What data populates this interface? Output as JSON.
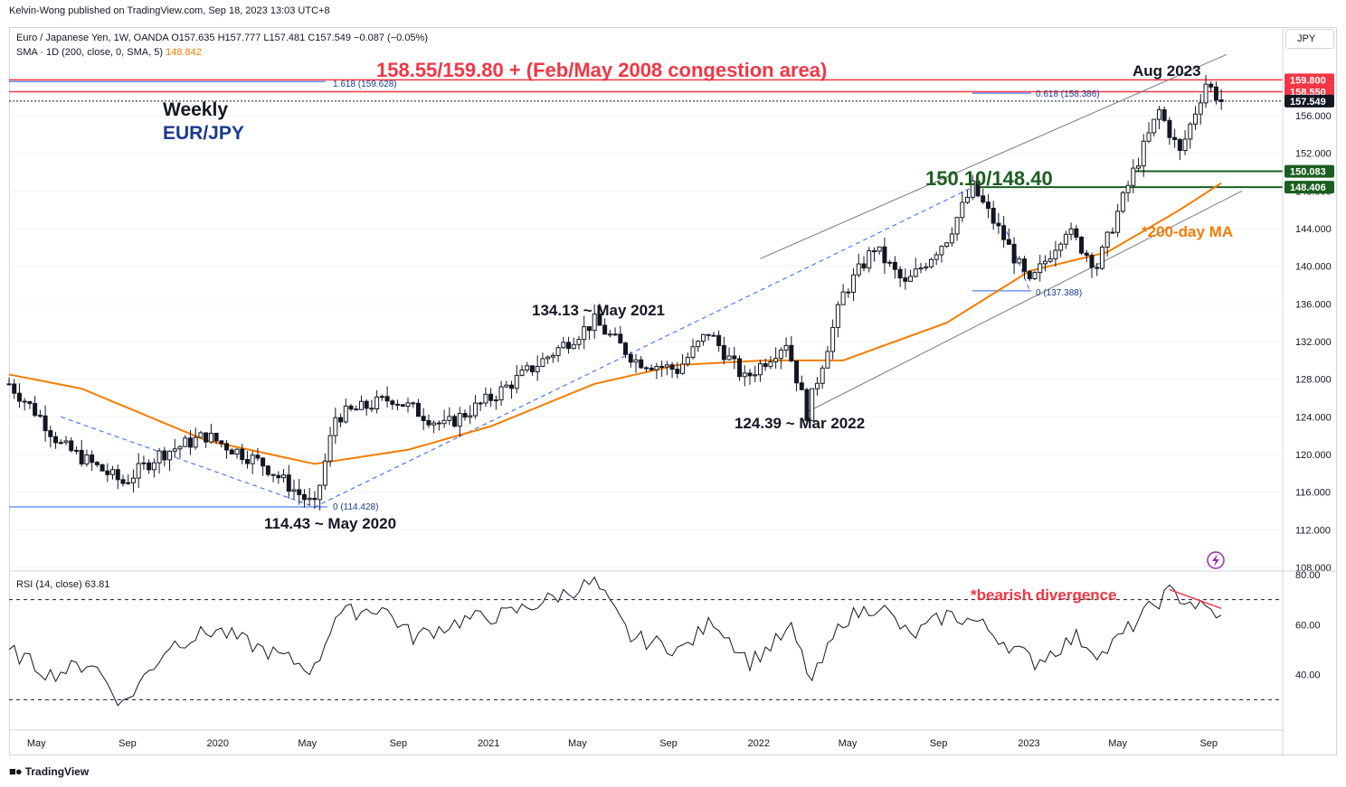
{
  "header": {
    "publisher": "Kelvin-Wong published on TradingView.com, Sep 18, 2023 13:03 UTC+8",
    "symbol_line": "Euro / Japanese Yen, 1W, OANDA  O157.635  H157.777  L157.481  C157.549  −0.087 (−0.05%)",
    "sma_line": "SMA · 1D (200, close, 0, SMA, 5)",
    "sma_value": "148.842",
    "currency": "JPY",
    "rsi_line": "RSI (14, close)  63.81"
  },
  "footer": {
    "logo_text": "TradingView"
  },
  "colors": {
    "up": "#131722",
    "down": "#131722",
    "sma": "#f57c00",
    "resistance": "#f23645",
    "support": "#1b5e20",
    "fib": "#2962ff",
    "annotation_blue": "#1a3a8f",
    "grid": "#e0e3eb"
  },
  "annotations": {
    "resistance_title": "158.55/159.80 + (Feb/May 2008 congestion area)",
    "support_title": "150.10/148.40",
    "weekly": "Weekly",
    "pair": "EUR/JPY",
    "ma_label": "*200-day MA",
    "aug_2023": "Aug 2023",
    "may_2021": "134.13 ~ May 2021",
    "mar_2022": "124.39 ~ Mar 2022",
    "may_2020": "114.43 ~ May 2020",
    "bearish_div": "*bearish divergence",
    "fib_1618": "1.618 (159.628)",
    "fib_0618": "0.618 (158.386)",
    "fib_zero_a": "0 (114.428)",
    "fib_zero_b": "0 (137.388)"
  },
  "chart_data": [
    {
      "type": "candlestick",
      "title": "Euro / Japanese Yen, 1W, OANDA",
      "ylim": [
        108,
        161.5
      ],
      "y_ticks": [
        "108.000",
        "112.000",
        "116.000",
        "120.000",
        "124.000",
        "128.000",
        "132.000",
        "136.000",
        "140.000",
        "144.000",
        "148.000",
        "152.000",
        "156.000"
      ],
      "x_labels": [
        "May",
        "Sep",
        "2020",
        "May",
        "Sep",
        "2021",
        "May",
        "Sep",
        "2022",
        "May",
        "Sep",
        "2023",
        "May",
        "Sep"
      ],
      "price_labels": [
        {
          "label": "159.800",
          "value": 159.8,
          "color": "#f23645"
        },
        {
          "label": "158.550",
          "value": 158.55,
          "color": "#f23645"
        },
        {
          "label": "157.549",
          "value": 157.549,
          "color": "#131722"
        },
        {
          "label": "150.083",
          "value": 150.083,
          "color": "#1b5e20"
        },
        {
          "label": "148.406",
          "value": 148.406,
          "color": "#1b5e20"
        }
      ],
      "horizontal_levels": [
        {
          "name": "resistance-upper",
          "value": 159.8
        },
        {
          "name": "resistance-lower",
          "value": 158.55
        },
        {
          "name": "support-upper",
          "value": 150.1
        },
        {
          "name": "support-lower",
          "value": 148.4
        },
        {
          "name": "current-close",
          "value": 157.549
        }
      ],
      "ohlc_anchors": [
        [
          "2019-03-25",
          127.5
        ],
        [
          "2019-05-06",
          124.0
        ],
        [
          "2019-06-03",
          121.0
        ],
        [
          "2019-08-26",
          117.0
        ],
        [
          "2019-10-14",
          120.0
        ],
        [
          "2019-12-16",
          122.0
        ],
        [
          "2020-03-02",
          119.0
        ],
        [
          "2020-05-11",
          114.43
        ],
        [
          "2020-06-08",
          124.0
        ],
        [
          "2020-08-24",
          126.0
        ],
        [
          "2020-11-02",
          123.0
        ],
        [
          "2021-01-04",
          126.0
        ],
        [
          "2021-03-15",
          130.0
        ],
        [
          "2021-05-24",
          134.13
        ],
        [
          "2021-07-19",
          130.0
        ],
        [
          "2021-09-13",
          129.0
        ],
        [
          "2021-10-25",
          133.0
        ],
        [
          "2021-12-13",
          128.0
        ],
        [
          "2022-02-07",
          132.0
        ],
        [
          "2022-03-07",
          124.39
        ],
        [
          "2022-04-25",
          137.0
        ],
        [
          "2022-06-06",
          142.0
        ],
        [
          "2022-07-18",
          138.0
        ],
        [
          "2022-09-12",
          143.0
        ],
        [
          "2022-10-17",
          148.4
        ],
        [
          "2022-11-28",
          143.0
        ],
        [
          "2023-01-02",
          138.0
        ],
        [
          "2023-02-20",
          144.0
        ],
        [
          "2023-04-03",
          140.0
        ],
        [
          "2023-05-22",
          150.0
        ],
        [
          "2023-06-26",
          156.5
        ],
        [
          "2023-07-24",
          152.0
        ],
        [
          "2023-08-28",
          159.5
        ],
        [
          "2023-09-18",
          157.549
        ]
      ],
      "sma_200d_anchors": [
        [
          "2019-03-25",
          128.5
        ],
        [
          "2019-07-01",
          127.0
        ],
        [
          "2019-12-16",
          121.5
        ],
        [
          "2020-05-11",
          119.0
        ],
        [
          "2020-09-14",
          120.5
        ],
        [
          "2021-01-04",
          123.0
        ],
        [
          "2021-05-24",
          127.5
        ],
        [
          "2021-09-13",
          129.5
        ],
        [
          "2022-01-10",
          130.0
        ],
        [
          "2022-04-25",
          130.0
        ],
        [
          "2022-09-12",
          134.0
        ],
        [
          "2023-01-02",
          139.5
        ],
        [
          "2023-04-17",
          141.5
        ],
        [
          "2023-07-24",
          146.0
        ],
        [
          "2023-09-18",
          148.842
        ]
      ],
      "channel": {
        "upper": [
          [
            "2022-01-03",
            140.8
          ],
          [
            "2023-09-25",
            162.5
          ]
        ],
        "lower": [
          [
            "2022-03-07",
            124.5
          ],
          [
            "2023-10-16",
            148.0
          ]
        ]
      },
      "fib_dashed": [
        [
          [
            "2019-06-03",
            124.0
          ],
          [
            "2020-05-11",
            114.43
          ],
          [
            "2022-10-17",
            148.4
          ]
        ],
        [
          [
            "2022-11-28",
            144.5
          ],
          [
            "2023-01-02",
            137.388
          ]
        ]
      ]
    },
    {
      "type": "line",
      "title": "RSI (14, close)",
      "ylim": [
        20,
        80
      ],
      "y_ticks": [
        "40.00",
        "60.00",
        "80.00"
      ],
      "reference_levels": [
        70,
        30
      ],
      "current_value": 63.81,
      "anchors": [
        [
          "2019-03-25",
          50
        ],
        [
          "2019-05-20",
          40
        ],
        [
          "2019-07-15",
          45
        ],
        [
          "2019-08-26",
          28
        ],
        [
          "2019-10-28",
          52
        ],
        [
          "2019-12-30",
          58
        ],
        [
          "2020-03-02",
          50
        ],
        [
          "2020-05-11",
          42
        ],
        [
          "2020-06-08",
          64
        ],
        [
          "2020-08-10",
          67
        ],
        [
          "2020-09-21",
          55
        ],
        [
          "2020-11-30",
          62
        ],
        [
          "2021-01-25",
          64
        ],
        [
          "2021-03-22",
          70
        ],
        [
          "2021-05-24",
          77
        ],
        [
          "2021-07-12",
          55
        ],
        [
          "2021-09-20",
          50
        ],
        [
          "2021-11-01",
          62
        ],
        [
          "2021-12-20",
          45
        ],
        [
          "2022-02-14",
          58
        ],
        [
          "2022-03-14",
          37
        ],
        [
          "2022-04-25",
          62
        ],
        [
          "2022-06-13",
          68
        ],
        [
          "2022-07-25",
          55
        ],
        [
          "2022-09-12",
          64
        ],
        [
          "2022-10-24",
          61
        ],
        [
          "2022-12-05",
          52
        ],
        [
          "2023-01-09",
          45
        ],
        [
          "2023-03-06",
          55
        ],
        [
          "2023-04-10",
          48
        ],
        [
          "2023-06-19",
          68
        ],
        [
          "2023-07-10",
          73
        ],
        [
          "2023-08-28",
          66
        ],
        [
          "2023-09-18",
          63.81
        ]
      ]
    }
  ]
}
